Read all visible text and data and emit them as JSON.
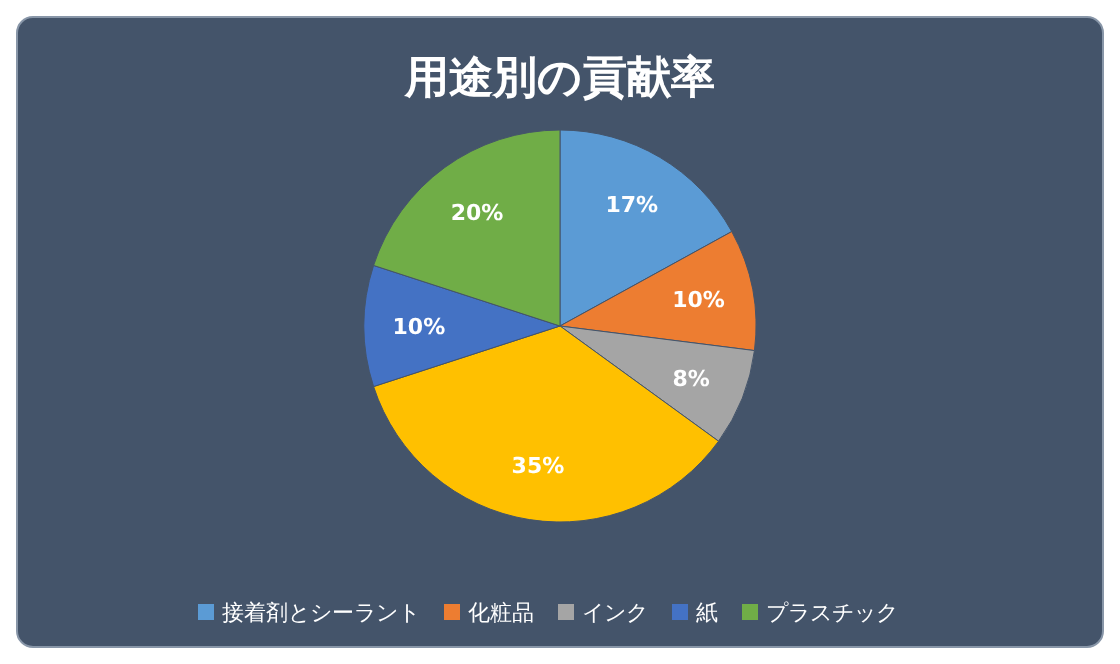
{
  "chart_data": {
    "type": "pie",
    "title": "用途別の貢献率",
    "categories": [
      "接着剤とシーラント",
      "化粧品",
      "インク",
      null,
      "紙",
      "プラスチック"
    ],
    "values": [
      17,
      10,
      8,
      35,
      10,
      20
    ],
    "colors": [
      "#5b9bd5",
      "#ed7d31",
      "#a5a5a5",
      "#ffc000",
      "#4472c4",
      "#70ad47"
    ],
    "value_labels": [
      "17%",
      "10%",
      "8%",
      "35%",
      "10%",
      "20%"
    ],
    "legend": "bottom"
  }
}
